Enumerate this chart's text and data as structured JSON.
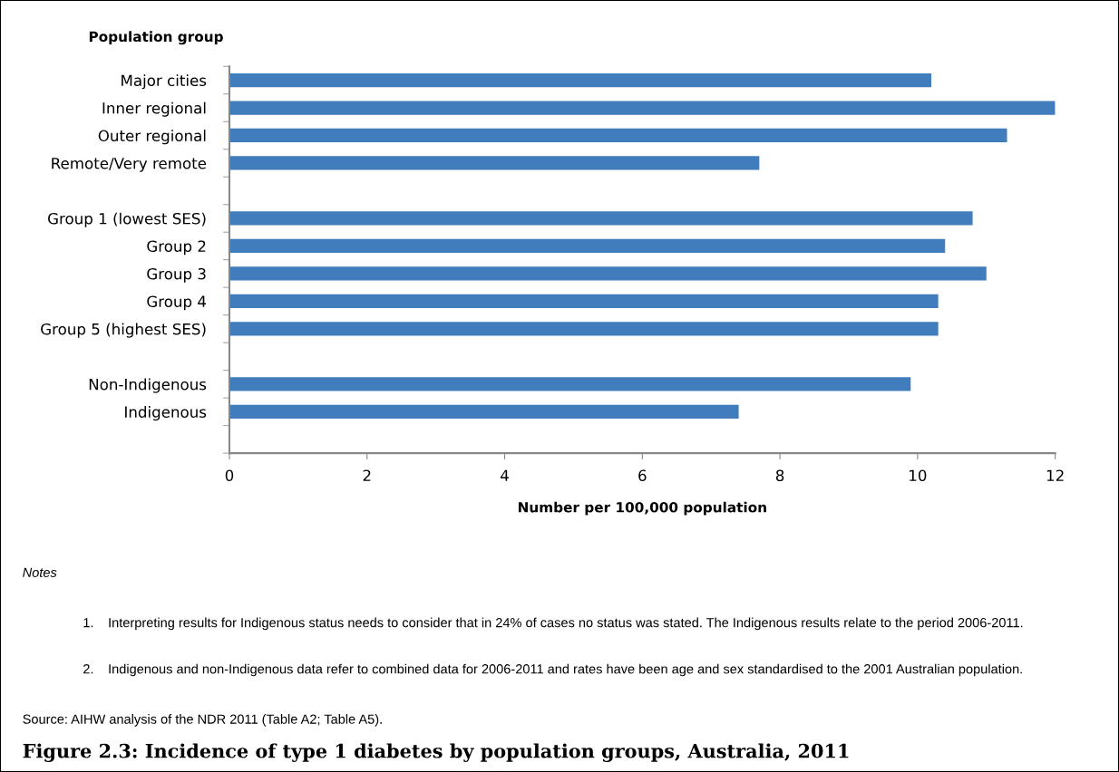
{
  "chart_data": {
    "type": "bar",
    "orientation": "horizontal",
    "title": "Figure 2.3: Incidence of type 1 diabetes by population groups, Australia, 2011",
    "ylabel": "Population group",
    "xlabel": "Number per 100,000 population",
    "categories": [
      "Major cities",
      "Inner regional",
      "Outer regional",
      "Remote/Very remote",
      null,
      "Group 1 (lowest SES)",
      "Group 2",
      "Group 3",
      "Group 4",
      "Group 5 (highest SES)",
      null,
      "Non-Indigenous",
      "Indigenous",
      null
    ],
    "values": [
      10.2,
      12.0,
      11.3,
      7.7,
      null,
      10.8,
      10.4,
      11.0,
      10.3,
      10.3,
      null,
      9.9,
      7.4,
      null
    ],
    "color": "#417cbc",
    "xlim": [
      0,
      12
    ],
    "xticks": [
      0,
      2,
      4,
      6,
      8,
      10,
      12
    ],
    "grid": false,
    "annotations": [
      "Notes",
      "1. Interpreting results for Indigenous status needs to consider that in 24% of cases no status was stated. The Indigenous results relate to the period 2006-2011.",
      "2. Indigenous and non-Indigenous data refer to combined data for 2006-2011 and rates have been age and sex standardised to the 2001 Australian population.",
      "Source: AIHW analysis of the NDR 2011 (Table A2; Table A5)."
    ]
  }
}
